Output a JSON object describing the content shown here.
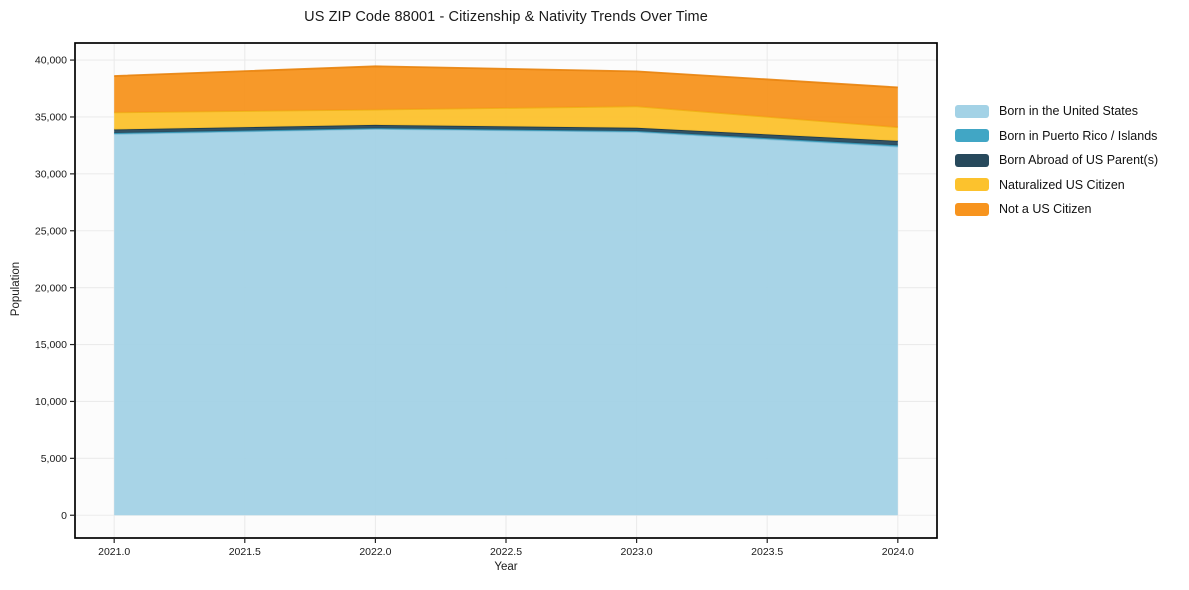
{
  "chart_data": {
    "type": "area",
    "stacked": true,
    "title": "US ZIP Code 88001 - Citizenship & Nativity Trends Over Time",
    "xlabel": "Year",
    "ylabel": "Population",
    "x": [
      2021,
      2022,
      2023,
      2024
    ],
    "series": [
      {
        "name": "Born in the United States",
        "color": "#a3d2e6",
        "edge_color": "#82bcd6",
        "values": [
          33500,
          33950,
          33700,
          32400
        ]
      },
      {
        "name": "Born in Puerto Rico / Islands",
        "color": "#41a6c5",
        "edge_color": "#338fad",
        "values": [
          90,
          60,
          70,
          110
        ]
      },
      {
        "name": "Born Abroad of US Parent(s)",
        "color": "#27495c",
        "edge_color": "#1c3a4a",
        "values": [
          310,
          290,
          280,
          390
        ]
      },
      {
        "name": "Naturalized US Citizen",
        "color": "#fcc22d",
        "edge_color": "#eeb014",
        "values": [
          1500,
          1350,
          1890,
          1200
        ]
      },
      {
        "name": "Not a US Citizen",
        "color": "#f7941e",
        "edge_color": "#e8830d",
        "values": [
          3200,
          3800,
          3060,
          3500
        ]
      }
    ],
    "totals": [
      38600,
      39450,
      39000,
      37600
    ],
    "xlim": [
      2020.85,
      2024.15
    ],
    "ylim": [
      -2000,
      41500
    ],
    "xticks": [
      {
        "value": 2021.0,
        "label": "2021.0"
      },
      {
        "value": 2021.5,
        "label": "2021.5"
      },
      {
        "value": 2022.0,
        "label": "2022.0"
      },
      {
        "value": 2022.5,
        "label": "2022.5"
      },
      {
        "value": 2023.0,
        "label": "2023.0"
      },
      {
        "value": 2023.5,
        "label": "2023.5"
      },
      {
        "value": 2024.0,
        "label": "2024.0"
      }
    ],
    "yticks": [
      {
        "value": 0,
        "label": "0"
      },
      {
        "value": 5000,
        "label": "5,000"
      },
      {
        "value": 10000,
        "label": "10,000"
      },
      {
        "value": 15000,
        "label": "15,000"
      },
      {
        "value": 20000,
        "label": "20,000"
      },
      {
        "value": 25000,
        "label": "25,000"
      },
      {
        "value": 30000,
        "label": "30,000"
      },
      {
        "value": 35000,
        "label": "35,000"
      },
      {
        "value": 40000,
        "label": "40,000"
      }
    ],
    "grid": true,
    "legend_position": "right-top",
    "grid_color": "#ebebeb",
    "frame_color": "#000000",
    "tick_color": "#222222",
    "text_color": "#1a1a1a"
  }
}
